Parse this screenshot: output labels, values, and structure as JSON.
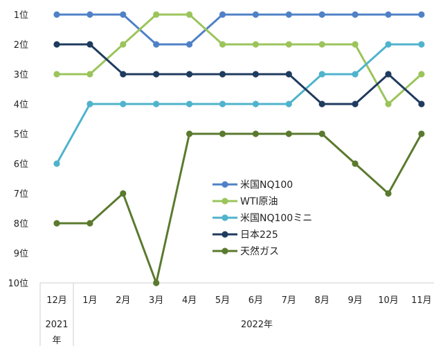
{
  "chart_data": {
    "type": "line",
    "title": "",
    "xlabel": "",
    "ylabel": "",
    "y_reversed": true,
    "ylim": [
      10,
      1
    ],
    "grid": false,
    "legend_placement": "center-right",
    "categories": [
      "12月",
      "1月",
      "2月",
      "3月",
      "4月",
      "5月",
      "6月",
      "7月",
      "8月",
      "9月",
      "10月",
      "11月"
    ],
    "year_groups": [
      {
        "label": "2021年",
        "span": 1
      },
      {
        "label": "2022年",
        "span": 11
      }
    ],
    "y_tick_labels": [
      "1位",
      "2位",
      "3位",
      "4位",
      "5位",
      "6位",
      "7位",
      "8位",
      "9位",
      "10位"
    ],
    "series": [
      {
        "name": "米国NQ100",
        "color": "#4f81c7",
        "values": [
          1,
          1,
          1,
          2,
          2,
          1,
          1,
          1,
          1,
          1,
          1,
          1
        ]
      },
      {
        "name": "WTI原油",
        "color": "#9bc45b",
        "values": [
          3,
          3,
          2,
          1,
          1,
          2,
          2,
          2,
          2,
          2,
          4,
          3
        ]
      },
      {
        "name": "米国NQ100ミニ",
        "color": "#4fb3cc",
        "values": [
          6,
          4,
          4,
          4,
          4,
          4,
          4,
          4,
          3,
          3,
          2,
          2
        ]
      },
      {
        "name": "日本225",
        "color": "#1f3b5e",
        "values": [
          2,
          2,
          3,
          3,
          3,
          3,
          3,
          3,
          4,
          4,
          3,
          4
        ]
      },
      {
        "name": "天然ガス",
        "color": "#5a7a2e",
        "values": [
          8,
          8,
          7,
          10,
          5,
          5,
          5,
          5,
          5,
          6,
          7,
          5
        ]
      }
    ]
  }
}
